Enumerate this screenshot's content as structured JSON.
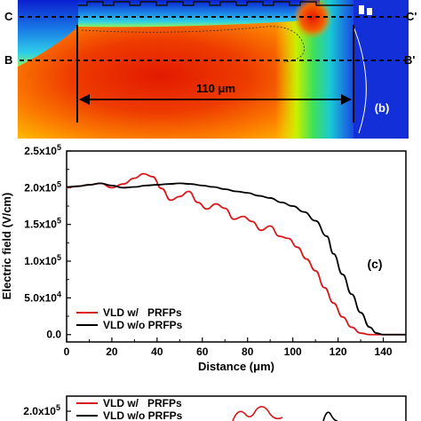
{
  "top_panel": {
    "marker_left_top": "C",
    "marker_left_bottom": "B",
    "marker_right_top": "C'",
    "marker_right_bottom": "B'",
    "dimension_label": "110 μm",
    "panel_label": "(b)"
  },
  "chart_data": [
    {
      "type": "line",
      "panel_label": "(c)",
      "xlabel": "Distance (μm)",
      "ylabel": "Electric field (V/cm)",
      "xlim": [
        0,
        150
      ],
      "ylim": [
        -10000,
        250000
      ],
      "x_ticks": [
        0,
        20,
        40,
        60,
        80,
        100,
        120,
        140
      ],
      "x_tick_labels": [
        "0",
        "20",
        "40",
        "60",
        "80",
        "100",
        "120",
        "140"
      ],
      "y_ticks": [
        0,
        50000,
        100000,
        150000,
        200000,
        250000
      ],
      "y_tick_labels": [
        {
          "mant": "0.0",
          "exp": ""
        },
        {
          "mant": "5.0x10",
          "exp": "4"
        },
        {
          "mant": "1.0x10",
          "exp": "5"
        },
        {
          "mant": "1.5x10",
          "exp": "5"
        },
        {
          "mant": "2.0x10",
          "exp": "5"
        },
        {
          "mant": "2.5x10",
          "exp": "5"
        }
      ],
      "legend_position": "bottom-left",
      "series": [
        {
          "name": "VLD w/   PRFPs",
          "color": "#d7191c",
          "x": [
            0,
            5,
            10,
            15,
            20,
            25,
            30,
            34,
            38,
            42,
            46,
            50,
            54,
            58,
            62,
            66,
            70,
            74,
            78,
            82,
            86,
            90,
            94,
            98,
            102,
            106,
            110,
            114,
            118,
            122,
            126,
            130,
            134,
            136,
            140,
            150
          ],
          "y": [
            200000,
            202000,
            204000,
            206000,
            200000,
            205000,
            213000,
            219000,
            215000,
            199000,
            183000,
            188000,
            195000,
            180000,
            171000,
            178000,
            172000,
            157000,
            161000,
            154000,
            142000,
            148000,
            134000,
            131000,
            119000,
            103000,
            87000,
            64000,
            43000,
            24000,
            10000,
            2000,
            0,
            0,
            0,
            0
          ]
        },
        {
          "name": "VLD w/o PRFPs",
          "color": "#000000",
          "x": [
            0,
            5,
            10,
            15,
            20,
            25,
            30,
            35,
            40,
            45,
            50,
            55,
            60,
            65,
            70,
            75,
            80,
            85,
            90,
            95,
            100,
            105,
            110,
            115,
            118,
            122,
            126,
            130,
            134,
            137,
            140,
            150
          ],
          "y": [
            201000,
            202000,
            204000,
            206000,
            203000,
            200000,
            201000,
            203000,
            204000,
            205000,
            206000,
            205000,
            203000,
            201000,
            198000,
            195000,
            193000,
            189000,
            186000,
            180000,
            175000,
            167000,
            155000,
            134000,
            110000,
            82000,
            55000,
            30000,
            10000,
            2000,
            0,
            0
          ]
        }
      ]
    },
    {
      "type": "line",
      "partial": true,
      "y_tick_labels": [
        {
          "mant": "2.0x10",
          "exp": "5"
        }
      ],
      "series_names": [
        "VLD w/   PRFPs",
        "VLD w/o PRFPs"
      ]
    }
  ]
}
